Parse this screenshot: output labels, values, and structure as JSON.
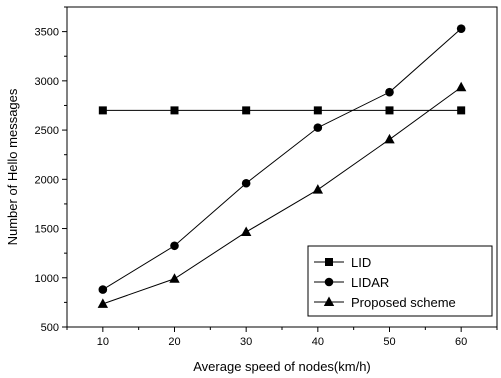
{
  "chart_data": {
    "type": "line",
    "title": "",
    "xlabel": "Average speed of nodes(km/h)",
    "ylabel": "Number of Hello messages",
    "xlim": [
      5,
      65
    ],
    "ylim": [
      500,
      3750
    ],
    "xticks": [
      10,
      20,
      30,
      40,
      50,
      60
    ],
    "yticks": [
      500,
      1000,
      1500,
      2000,
      2500,
      3000,
      3500
    ],
    "grid": false,
    "legend_position": "bottom-right",
    "x": [
      10,
      20,
      30,
      40,
      50,
      60
    ],
    "series": [
      {
        "name": "LID",
        "marker": "square",
        "color": "#000000",
        "values": [
          2700,
          2700,
          2700,
          2700,
          2700,
          2700
        ]
      },
      {
        "name": "LIDAR",
        "marker": "circle",
        "color": "#000000",
        "values": [
          880,
          1325,
          1960,
          2525,
          2885,
          3530
        ]
      },
      {
        "name": "Proposed scheme",
        "marker": "triangle",
        "color": "#000000",
        "values": [
          735,
          990,
          1465,
          1895,
          2405,
          2935
        ]
      }
    ]
  }
}
